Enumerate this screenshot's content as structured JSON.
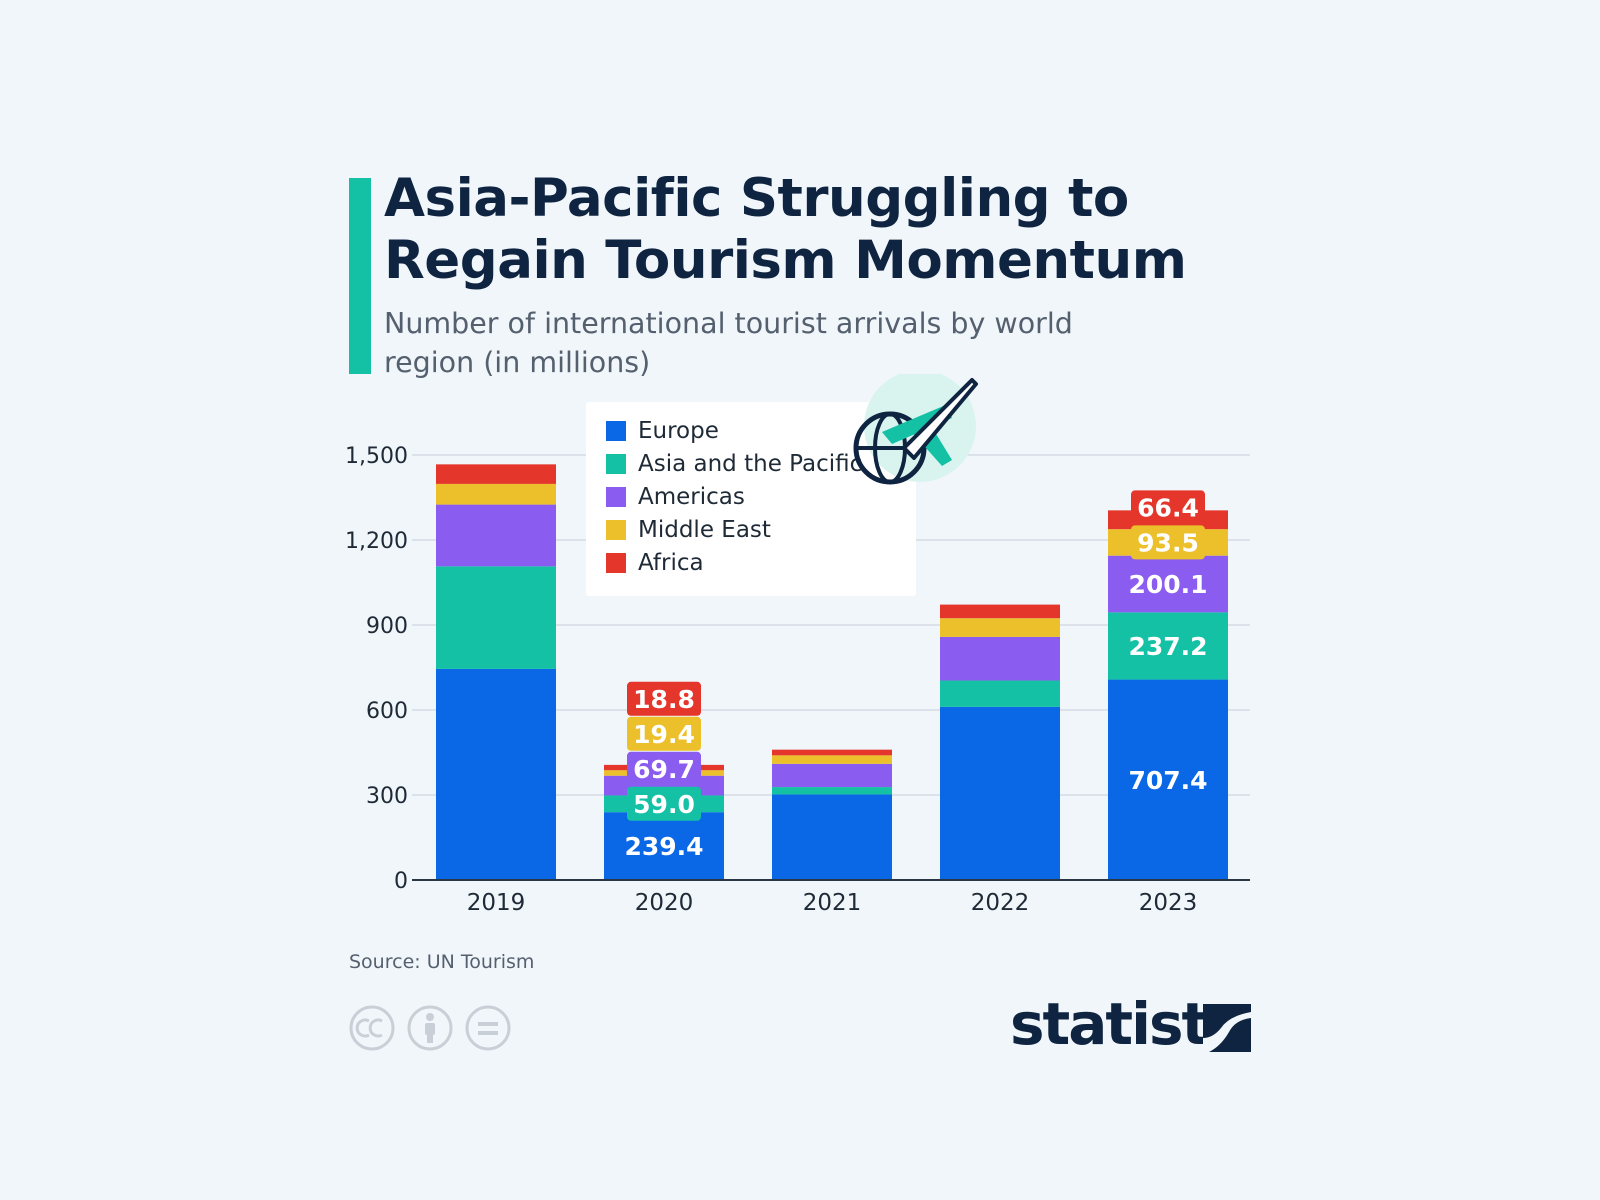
{
  "header": {
    "title": "Asia-Pacific Struggling to Regain Tourism Momentum",
    "subtitle": "Number of international tourist arrivals by world region (in millions)"
  },
  "footer": {
    "source": "Source: UN Tourism",
    "brand": "statista"
  },
  "icons": [
    "airplane-globe-icon",
    "cc-icon",
    "by-icon",
    "nd-icon",
    "statista-logo-icon"
  ],
  "colors": {
    "background": "#f1f6fb",
    "accent": "#14c1a5",
    "title": "#0f2440"
  },
  "chart_data": {
    "type": "bar",
    "stacked": true,
    "categories": [
      "2019",
      "2020",
      "2021",
      "2022",
      "2023"
    ],
    "ylim": [
      0,
      1500
    ],
    "yticks": [
      0,
      300,
      600,
      900,
      1200,
      1500
    ],
    "ytick_labels": [
      "0",
      "300",
      "600",
      "900",
      "1,200",
      "1,500"
    ],
    "grid": true,
    "legend_position": "top-center",
    "series": [
      {
        "name": "Europe",
        "color": "#0a67e6",
        "values": [
          745,
          239.4,
          302,
          611,
          707.4
        ]
      },
      {
        "name": "Asia and the Pacific",
        "color": "#14c1a5",
        "values": [
          362,
          59.0,
          26,
          93,
          237.2
        ]
      },
      {
        "name": "Americas",
        "color": "#8a5cf0",
        "values": [
          218,
          69.7,
          82,
          154,
          200.1
        ]
      },
      {
        "name": "Middle East",
        "color": "#ecc02b",
        "values": [
          73,
          19.4,
          30,
          66,
          93.5
        ]
      },
      {
        "name": "Africa",
        "color": "#e5362c",
        "values": [
          69,
          18.8,
          20,
          48,
          66.4
        ]
      }
    ],
    "data_labels": [
      {
        "category": "2020",
        "series": "Europe",
        "text": "239.4"
      },
      {
        "category": "2020",
        "series": "Asia and the Pacific",
        "text": "59.0"
      },
      {
        "category": "2020",
        "series": "Americas",
        "text": "69.7"
      },
      {
        "category": "2020",
        "series": "Middle East",
        "text": "19.4"
      },
      {
        "category": "2020",
        "series": "Africa",
        "text": "18.8"
      },
      {
        "category": "2023",
        "series": "Europe",
        "text": "707.4"
      },
      {
        "category": "2023",
        "series": "Asia and the Pacific",
        "text": "237.2"
      },
      {
        "category": "2023",
        "series": "Americas",
        "text": "200.1"
      },
      {
        "category": "2023",
        "series": "Middle East",
        "text": "93.5"
      },
      {
        "category": "2023",
        "series": "Africa",
        "text": "66.4"
      }
    ]
  }
}
